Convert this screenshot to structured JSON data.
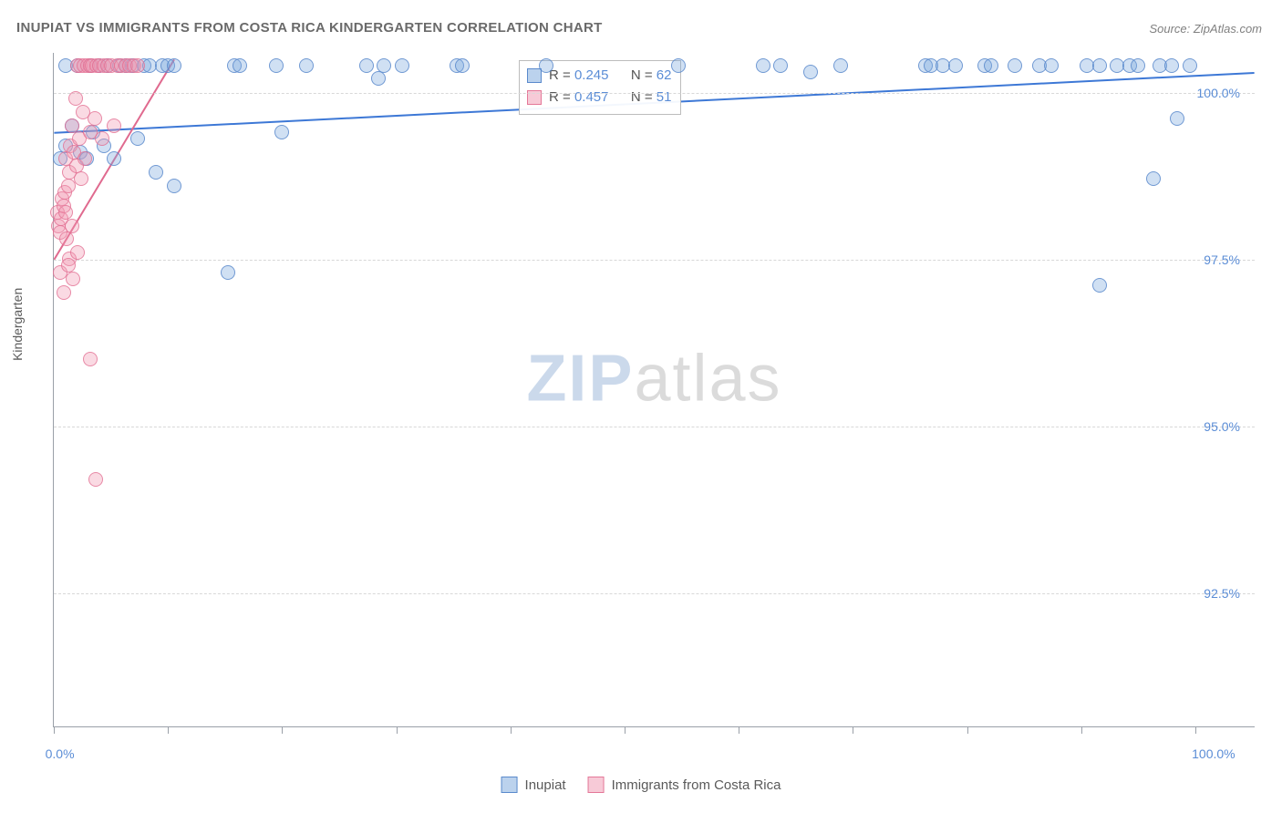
{
  "title": "INUPIAT VS IMMIGRANTS FROM COSTA RICA KINDERGARTEN CORRELATION CHART",
  "source": "Source: ZipAtlas.com",
  "watermark": {
    "zip": "ZIP",
    "atlas": "atlas"
  },
  "y_axis_label": "Kindergarten",
  "chart": {
    "type": "scatter",
    "background_color": "#ffffff",
    "grid_color": "#d8d8d8",
    "axis_color": "#9aa0a8",
    "point_radius": 8,
    "xlim": [
      0,
      100
    ],
    "ylim": [
      90.5,
      100.6
    ],
    "y_ticks": [
      {
        "value": 92.5,
        "label": "92.5%"
      },
      {
        "value": 95.0,
        "label": "95.0%"
      },
      {
        "value": 97.5,
        "label": "97.5%"
      },
      {
        "value": 100.0,
        "label": "100.0%"
      }
    ],
    "x_tick_positions": [
      0,
      9.5,
      19,
      28.5,
      38,
      47.5,
      57,
      66.5,
      76,
      85.5,
      95
    ],
    "x_labels": [
      {
        "x": 0.5,
        "label": "0.0%"
      },
      {
        "x": 96.5,
        "label": "100.0%"
      }
    ],
    "series": [
      {
        "name": "Inupiat",
        "color_key": "blue",
        "fill": "rgba(120,165,220,0.35)",
        "stroke": "rgba(80,130,200,0.75)",
        "stats": {
          "R": "0.245",
          "N": "62"
        },
        "trend": {
          "x1": 0,
          "y1": 99.4,
          "x2": 100,
          "y2": 100.3,
          "stroke": "#3d78d6",
          "width": 2
        },
        "points": [
          [
            0.5,
            99.0
          ],
          [
            1.0,
            99.2
          ],
          [
            1.0,
            100.4
          ],
          [
            1.5,
            99.5
          ],
          [
            2.0,
            100.4
          ],
          [
            2.2,
            99.1
          ],
          [
            2.7,
            99.0
          ],
          [
            3.0,
            100.4
          ],
          [
            3.3,
            99.4
          ],
          [
            3.8,
            100.4
          ],
          [
            4.2,
            99.2
          ],
          [
            4.5,
            100.4
          ],
          [
            5.0,
            99.0
          ],
          [
            5.5,
            100.4
          ],
          [
            6.0,
            100.4
          ],
          [
            6.5,
            100.4
          ],
          [
            7.0,
            99.3
          ],
          [
            7.5,
            100.4
          ],
          [
            8.0,
            100.4
          ],
          [
            8.5,
            98.8
          ],
          [
            9.0,
            100.4
          ],
          [
            9.5,
            100.4
          ],
          [
            10.0,
            100.4
          ],
          [
            10.0,
            98.6
          ],
          [
            14.5,
            97.3
          ],
          [
            15.0,
            100.4
          ],
          [
            15.5,
            100.4
          ],
          [
            18.5,
            100.4
          ],
          [
            19.0,
            99.4
          ],
          [
            21.0,
            100.4
          ],
          [
            26.0,
            100.4
          ],
          [
            27.0,
            100.2
          ],
          [
            27.5,
            100.4
          ],
          [
            29.0,
            100.4
          ],
          [
            33.5,
            100.4
          ],
          [
            34.0,
            100.4
          ],
          [
            41.0,
            100.4
          ],
          [
            52.0,
            100.4
          ],
          [
            59.0,
            100.4
          ],
          [
            60.5,
            100.4
          ],
          [
            63.0,
            100.3
          ],
          [
            65.5,
            100.4
          ],
          [
            72.5,
            100.4
          ],
          [
            73.0,
            100.4
          ],
          [
            74.0,
            100.4
          ],
          [
            75.0,
            100.4
          ],
          [
            77.5,
            100.4
          ],
          [
            78.0,
            100.4
          ],
          [
            80.0,
            100.4
          ],
          [
            82.0,
            100.4
          ],
          [
            83.0,
            100.4
          ],
          [
            86.0,
            100.4
          ],
          [
            87.0,
            100.4
          ],
          [
            87.0,
            97.1
          ],
          [
            88.5,
            100.4
          ],
          [
            89.5,
            100.4
          ],
          [
            90.2,
            100.4
          ],
          [
            91.5,
            98.7
          ],
          [
            92.0,
            100.4
          ],
          [
            93.0,
            100.4
          ],
          [
            93.5,
            99.6
          ],
          [
            94.5,
            100.4
          ]
        ]
      },
      {
        "name": "Immigrants from Costa Rica",
        "color_key": "pink",
        "fill": "rgba(240,150,175,0.35)",
        "stroke": "rgba(225,110,145,0.75)",
        "stats": {
          "R": "0.457",
          "N": "51"
        },
        "trend": {
          "x1": 0,
          "y1": 97.5,
          "x2": 10,
          "y2": 100.5,
          "stroke": "#e06a8f",
          "width": 2
        },
        "points": [
          [
            0.3,
            98.2
          ],
          [
            0.4,
            98.0
          ],
          [
            0.5,
            97.9
          ],
          [
            0.5,
            97.3
          ],
          [
            0.6,
            98.1
          ],
          [
            0.7,
            98.4
          ],
          [
            0.8,
            97.0
          ],
          [
            0.8,
            98.3
          ],
          [
            0.9,
            98.5
          ],
          [
            1.0,
            98.2
          ],
          [
            1.0,
            99.0
          ],
          [
            1.1,
            97.8
          ],
          [
            1.2,
            98.6
          ],
          [
            1.3,
            97.5
          ],
          [
            1.3,
            98.8
          ],
          [
            1.4,
            99.2
          ],
          [
            1.5,
            98.0
          ],
          [
            1.5,
            99.5
          ],
          [
            1.6,
            97.2
          ],
          [
            1.7,
            99.1
          ],
          [
            1.8,
            99.9
          ],
          [
            1.9,
            98.9
          ],
          [
            2.0,
            100.4
          ],
          [
            2.0,
            97.6
          ],
          [
            2.1,
            99.3
          ],
          [
            2.2,
            100.4
          ],
          [
            2.3,
            98.7
          ],
          [
            2.4,
            99.7
          ],
          [
            2.5,
            100.4
          ],
          [
            2.6,
            99.0
          ],
          [
            2.8,
            100.4
          ],
          [
            3.0,
            99.4
          ],
          [
            3.0,
            100.4
          ],
          [
            3.2,
            100.4
          ],
          [
            3.4,
            99.6
          ],
          [
            3.6,
            100.4
          ],
          [
            3.8,
            100.4
          ],
          [
            4.0,
            99.3
          ],
          [
            4.2,
            100.4
          ],
          [
            4.5,
            100.4
          ],
          [
            4.8,
            100.4
          ],
          [
            5.0,
            99.5
          ],
          [
            5.3,
            100.4
          ],
          [
            5.6,
            100.4
          ],
          [
            6.0,
            100.4
          ],
          [
            6.3,
            100.4
          ],
          [
            6.7,
            100.4
          ],
          [
            7.0,
            100.4
          ],
          [
            3.0,
            96.0
          ],
          [
            3.5,
            94.2
          ],
          [
            1.2,
            97.4
          ]
        ]
      }
    ]
  },
  "stats_labels": {
    "R": "R =",
    "N": "N ="
  },
  "legend": {
    "items": [
      {
        "label": "Inupiat",
        "color_key": "blue"
      },
      {
        "label": "Immigrants from Costa Rica",
        "color_key": "pink"
      }
    ]
  }
}
